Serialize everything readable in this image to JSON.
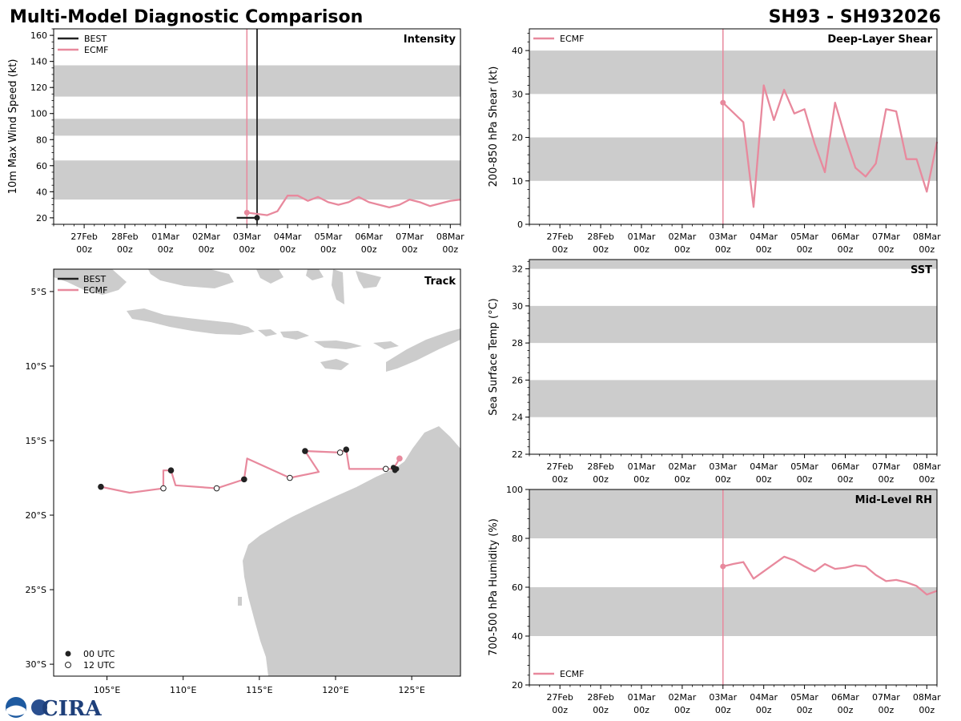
{
  "header": {
    "title": "Multi-Model Diagnostic Comparison",
    "storm_id": "SH93 - SH932026"
  },
  "colors": {
    "best": "#222222",
    "ecmf": "#e8899d",
    "band": "#cccccc",
    "land": "#cccccc"
  },
  "time_axis": {
    "labels": [
      [
        "27Feb",
        "00z"
      ],
      [
        "28Feb",
        "00z"
      ],
      [
        "01Mar",
        "00z"
      ],
      [
        "02Mar",
        "00z"
      ],
      [
        "03Mar",
        "00z"
      ],
      [
        "04Mar",
        "00z"
      ],
      [
        "05Mar",
        "00z"
      ],
      [
        "06Mar",
        "00z"
      ],
      [
        "07Mar",
        "00z"
      ],
      [
        "08Mar",
        "00z"
      ]
    ]
  },
  "logo": {
    "text": "CIRA"
  },
  "chart_data": [
    {
      "id": "intensity",
      "type": "line",
      "title": "Intensity",
      "ylabel": "10m Max Wind Speed (kt)",
      "xlim_days": [
        -0.75,
        9.25
      ],
      "ylim": [
        15,
        165
      ],
      "yticks": [
        20,
        40,
        60,
        80,
        100,
        120,
        140,
        160
      ],
      "bands": [
        [
          34,
          64
        ],
        [
          83,
          96
        ],
        [
          113,
          137
        ]
      ],
      "vlines": [
        {
          "series": "ECMF",
          "x": 4.0
        },
        {
          "series": "BEST",
          "x": 4.25
        }
      ],
      "legend": [
        "BEST",
        "ECMF"
      ],
      "series": [
        {
          "name": "BEST",
          "x": [
            3.75,
            4.0,
            4.25
          ],
          "y": [
            20,
            20,
            20
          ],
          "marker_last": true
        },
        {
          "name": "ECMF",
          "x": [
            4.0,
            4.25,
            4.5,
            4.75,
            5.0,
            5.25,
            5.5,
            5.75,
            6.0,
            6.25,
            6.5,
            6.75,
            7.0,
            7.25,
            7.5,
            7.75,
            8.0,
            8.25,
            8.5,
            8.75,
            9.0,
            9.25
          ],
          "y": [
            24,
            23,
            22,
            25,
            37,
            37,
            33,
            36,
            32,
            30,
            32,
            36,
            32,
            30,
            28,
            30,
            34,
            32,
            29,
            31,
            33,
            34
          ],
          "marker_first": true
        }
      ]
    },
    {
      "id": "shear",
      "type": "line",
      "title": "Deep-Layer Shear",
      "ylabel": "200-850 hPa Shear (kt)",
      "xlim_days": [
        -0.75,
        9.25
      ],
      "ylim": [
        0,
        45
      ],
      "yticks": [
        0,
        10,
        20,
        30,
        40
      ],
      "bands": [
        [
          10,
          20
        ],
        [
          30,
          40
        ]
      ],
      "vlines": [
        {
          "series": "ECMF",
          "x": 4.0
        }
      ],
      "legend": [
        "ECMF"
      ],
      "series": [
        {
          "name": "ECMF",
          "x": [
            4.0,
            4.5,
            4.75,
            5.0,
            5.25,
            5.5,
            5.75,
            6.0,
            6.25,
            6.5,
            6.75,
            7.0,
            7.25,
            7.5,
            7.75,
            8.0,
            8.25,
            8.5,
            8.75,
            9.0,
            9.25
          ],
          "y": [
            28,
            23.5,
            4,
            32,
            24,
            31,
            25.5,
            26.5,
            18.5,
            12,
            28,
            20,
            13,
            11,
            14,
            26.5,
            26,
            15,
            15,
            7.5,
            19
          ],
          "marker_first": true
        }
      ]
    },
    {
      "id": "sst",
      "type": "line",
      "title": "SST",
      "ylabel": "Sea Surface Temp (°C)",
      "xlim_days": [
        -0.75,
        9.25
      ],
      "ylim": [
        22,
        32.5
      ],
      "yticks": [
        22,
        24,
        26,
        28,
        30,
        32
      ],
      "bands": [
        [
          24,
          26
        ],
        [
          28,
          30
        ],
        [
          32,
          34
        ]
      ],
      "vlines": [],
      "legend": [],
      "series": []
    },
    {
      "id": "rh",
      "type": "line",
      "title": "Mid-Level RH",
      "ylabel": "700-500 hPa Humidity (%)",
      "xlim_days": [
        -0.75,
        9.25
      ],
      "ylim": [
        20,
        100
      ],
      "yticks": [
        20,
        40,
        60,
        80,
        100
      ],
      "bands": [
        [
          40,
          60
        ],
        [
          80,
          100
        ]
      ],
      "vlines": [
        {
          "series": "ECMF",
          "x": 4.0
        }
      ],
      "legend": [
        "ECMF"
      ],
      "series": [
        {
          "name": "ECMF",
          "x": [
            4.0,
            4.25,
            4.5,
            4.75,
            5.0,
            5.25,
            5.5,
            5.75,
            6.0,
            6.25,
            6.5,
            6.75,
            7.0,
            7.25,
            7.5,
            7.75,
            8.0,
            8.25,
            8.5,
            8.75,
            9.0,
            9.25
          ],
          "y": [
            68.5,
            69.5,
            70.3,
            63.5,
            66.5,
            69.5,
            72.5,
            71,
            68.5,
            66.5,
            69.5,
            67.5,
            68,
            69,
            68.5,
            65,
            62.5,
            63,
            62,
            60.5,
            57,
            58.5
          ],
          "marker_first": true
        }
      ]
    },
    {
      "id": "track",
      "type": "scatter",
      "title": "Track",
      "xlim": [
        101.5,
        128.2
      ],
      "ylim": [
        -30.8,
        -3.5
      ],
      "xticks": [
        105,
        110,
        115,
        120,
        125
      ],
      "xtick_labels": [
        "105°E",
        "110°E",
        "115°E",
        "120°E",
        "125°E"
      ],
      "yticks": [
        -5,
        -10,
        -15,
        -20,
        -25,
        -30
      ],
      "ytick_labels": [
        "5°S",
        "10°S",
        "15°S",
        "20°S",
        "25°S",
        "30°S"
      ],
      "legend": [
        "BEST",
        "ECMF"
      ],
      "marker_legend": [
        "00 UTC",
        "12 UTC"
      ],
      "series": [
        {
          "name": "BEST",
          "lon": [
            123.9,
            124.0,
            123.8
          ],
          "lat": [
            -17.0,
            -16.9,
            -16.8
          ],
          "utc": [
            "00",
            "00",
            "00"
          ]
        },
        {
          "name": "ECMF",
          "lon": [
            124.2,
            123.8,
            123.3,
            122.7,
            120.9,
            120.7,
            120.3,
            118.0,
            118.9,
            117.0,
            114.2,
            114.0,
            112.2,
            109.5,
            109.2,
            108.7,
            108.7,
            106.5,
            104.6
          ],
          "lat": [
            -16.2,
            -16.9,
            -16.9,
            -16.9,
            -16.9,
            -15.6,
            -15.8,
            -15.7,
            -17.1,
            -17.5,
            -16.2,
            -17.6,
            -18.2,
            -18.0,
            -17.0,
            -17.0,
            -18.2,
            -18.5,
            -18.1
          ],
          "markers": [
            {
              "i": 0,
              "utc": "00"
            },
            {
              "i": 2,
              "utc": "12"
            },
            {
              "i": 5,
              "utc": "00"
            },
            {
              "i": 6,
              "utc": "12"
            },
            {
              "i": 7,
              "utc": "00"
            },
            {
              "i": 9,
              "utc": "12"
            },
            {
              "i": 11,
              "utc": "00"
            },
            {
              "i": 12,
              "utc": "12"
            },
            {
              "i": 14,
              "utc": "00"
            },
            {
              "i": 16,
              "utc": "12"
            },
            {
              "i": 18,
              "utc": "00"
            }
          ]
        }
      ]
    }
  ]
}
